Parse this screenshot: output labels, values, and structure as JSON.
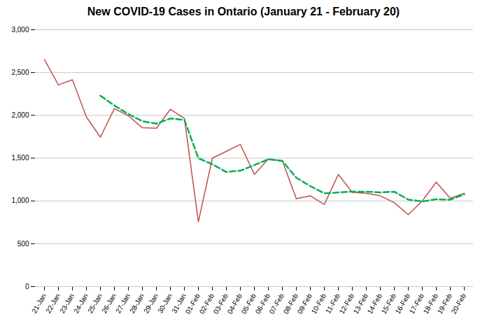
{
  "chart_data": {
    "type": "line",
    "title": "New COVID-19 Cases in Ontario (January 21 - February 20)",
    "categories": [
      "21-Jan",
      "22-Jan",
      "23-Jan",
      "24-Jan",
      "25-Jan",
      "26-Jan",
      "27-Jan",
      "28-Jan",
      "29-Jan",
      "30-Jan",
      "31-Jan",
      "01-Feb",
      "02-Feb",
      "03-Feb",
      "04-Feb",
      "05-Feb",
      "06-Feb",
      "07-Feb",
      "08-Feb",
      "09-Feb",
      "10-Feb",
      "11-Feb",
      "12-Feb",
      "13-Feb",
      "14-Feb",
      "15-Feb",
      "16-Feb",
      "17-Feb",
      "18-Feb",
      "19-Feb",
      "20-Feb"
    ],
    "series": [
      {
        "color": "#c0504d",
        "line_style": "solid",
        "values": [
          2651,
          2355,
          2415,
          1980,
          1745,
          2080,
          1995,
          1855,
          1850,
          2070,
          1965,
          757,
          1500,
          1580,
          1660,
          1310,
          1490,
          1470,
          1025,
          1060,
          960,
          1310,
          1100,
          1090,
          1060,
          980,
          840,
          1000,
          1220,
          1030,
          1090
        ]
      },
      {
        "color": "#00b050",
        "line_style": "dashed",
        "values": [
          null,
          null,
          null,
          null,
          2229,
          2115,
          2015,
          1931,
          1903,
          1963,
          1947,
          1499,
          1429,
          1338,
          1354,
          1419,
          1487,
          1467,
          1271,
          1173,
          1089,
          1099,
          1109,
          1108,
          1100,
          1108,
          1016,
          994,
          1020,
          1014,
          1078
        ]
      }
    ],
    "ylim": [
      0,
      3000
    ],
    "yticks": [
      0,
      500,
      {
        "value": 1000,
        "label": "1,000"
      },
      {
        "value": 1500,
        "label": "1,500"
      },
      {
        "value": 2000,
        "label": "2,000"
      },
      {
        "value": 2500,
        "label": "2,500"
      },
      {
        "value": 3000,
        "label": "3,000"
      }
    ],
    "grid": true
  }
}
